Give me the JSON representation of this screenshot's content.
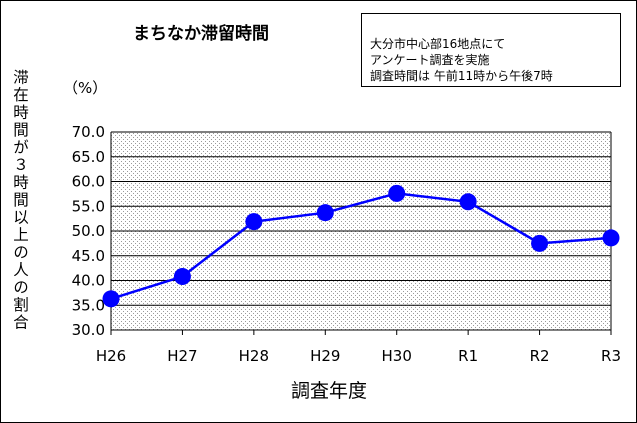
{
  "chart_data": {
    "type": "line",
    "title": "まちなか滞留時間",
    "note": [
      "大分市中心部16地点にて",
      "アンケート調査を実施",
      "調査時間は 午前11時から午後7時"
    ],
    "ylabel": "滞在時間が３時間以上の人の割合",
    "y_unit": "（%）",
    "xlabel": "調査年度",
    "categories": [
      "H26",
      "H27",
      "H28",
      "H29",
      "H30",
      "R1",
      "R2",
      "R3"
    ],
    "values": [
      36.3,
      40.8,
      51.9,
      53.7,
      57.6,
      55.9,
      47.5,
      48.6
    ],
    "ylim": [
      30.0,
      70.0
    ],
    "ytick_step": 5.0,
    "grid": true,
    "plot_fill": "dotted-gray",
    "colors": {
      "line": "#0000ff",
      "marker": "#0000ff",
      "grid": "#000000",
      "axis": "#000000"
    }
  }
}
